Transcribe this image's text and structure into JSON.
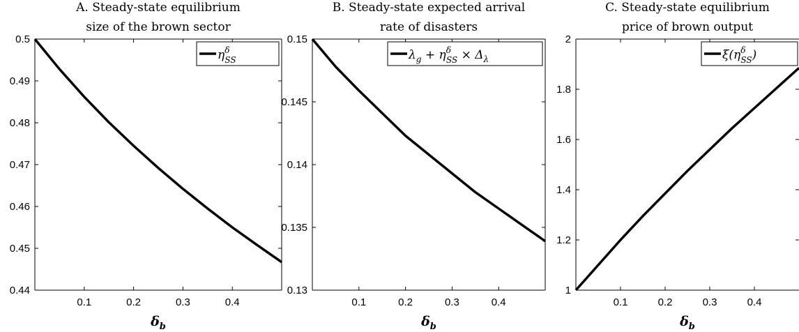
{
  "chart_data": [
    {
      "type": "line",
      "title_line1": "A. Steady-state equilibrium",
      "title_line2": "size of the brown sector",
      "xlabel": "δ",
      "xlabel_sub": "b",
      "ylabel": "",
      "xlim": [
        0,
        0.5
      ],
      "ylim": [
        0.44,
        0.5
      ],
      "x_ticks": [
        0.1,
        0.2,
        0.3,
        0.4
      ],
      "x_tick_labels": [
        "0.1",
        "0.2",
        "0.3",
        "0.4"
      ],
      "y_ticks": [
        0.44,
        0.45,
        0.46,
        0.47,
        0.48,
        0.49,
        0.5
      ],
      "y_tick_labels": [
        "0.44",
        "0.45",
        "0.46",
        "0.47",
        "0.48",
        "0.49",
        "0.5"
      ],
      "grid": false,
      "legend_position": "top-right",
      "series": [
        {
          "legend_base": "η",
          "legend_sup": "δ",
          "legend_sub": "SS",
          "legend_rest": "",
          "x": [
            0,
            0.05,
            0.1,
            0.15,
            0.2,
            0.25,
            0.3,
            0.35,
            0.4,
            0.45,
            0.5
          ],
          "y": [
            0.5,
            0.4928,
            0.4862,
            0.4801,
            0.4745,
            0.4692,
            0.4642,
            0.4595,
            0.455,
            0.4508,
            0.4467
          ]
        }
      ]
    },
    {
      "type": "line",
      "title_line1": "B. Steady-state expected arrival",
      "title_line2": "rate of disasters",
      "xlabel": "δ",
      "xlabel_sub": "b",
      "ylabel": "",
      "xlim": [
        0,
        0.5
      ],
      "ylim": [
        0.13,
        0.15
      ],
      "x_ticks": [
        0.1,
        0.2,
        0.3,
        0.4
      ],
      "x_tick_labels": [
        "0.1",
        "0.2",
        "0.3",
        "0.4"
      ],
      "y_ticks": [
        0.13,
        0.135,
        0.14,
        0.145,
        0.15
      ],
      "y_tick_labels": [
        "0.13",
        "0.135",
        "0.14",
        "0.145",
        "0.15"
      ],
      "grid": false,
      "legend_position": "top-right",
      "series": [
        {
          "legend_base": "λ",
          "legend_base_sub": "g",
          "legend_mid": " + η",
          "legend_sup": "δ",
          "legend_sub": "SS",
          "legend_rest": " × Δ",
          "legend_rest_sub": "λ",
          "x": [
            0,
            0.05,
            0.1,
            0.15,
            0.2,
            0.25,
            0.3,
            0.35,
            0.4,
            0.45,
            0.5
          ],
          "y": [
            0.15,
            0.1478,
            0.1459,
            0.1441,
            0.1423,
            0.1408,
            0.1393,
            0.1378,
            0.1365,
            0.1352,
            0.1339
          ]
        }
      ]
    },
    {
      "type": "line",
      "title_line1": "C. Steady-state equilibrium",
      "title_line2": "price of brown output",
      "xlabel": "δ",
      "xlabel_sub": "b",
      "ylabel": "",
      "xlim": [
        0,
        0.5
      ],
      "ylim": [
        1,
        2
      ],
      "x_ticks": [
        0.1,
        0.2,
        0.3,
        0.4
      ],
      "x_tick_labels": [
        "0.1",
        "0.2",
        "0.3",
        "0.4"
      ],
      "y_ticks": [
        1,
        1.2,
        1.4,
        1.6,
        1.8,
        2
      ],
      "y_tick_labels": [
        "1",
        "1.2",
        "1.4",
        "1.6",
        "1.8",
        "2"
      ],
      "grid": false,
      "legend_position": "top-right",
      "series": [
        {
          "legend_base": "ξ(η",
          "legend_sup": "δ",
          "legend_sub": "SS",
          "legend_rest": ")",
          "x": [
            0,
            0.05,
            0.1,
            0.15,
            0.2,
            0.25,
            0.3,
            0.35,
            0.4,
            0.45,
            0.5
          ],
          "y": [
            1,
            1.1,
            1.2,
            1.295,
            1.385,
            1.475,
            1.56,
            1.645,
            1.725,
            1.805,
            1.885
          ]
        }
      ]
    }
  ]
}
